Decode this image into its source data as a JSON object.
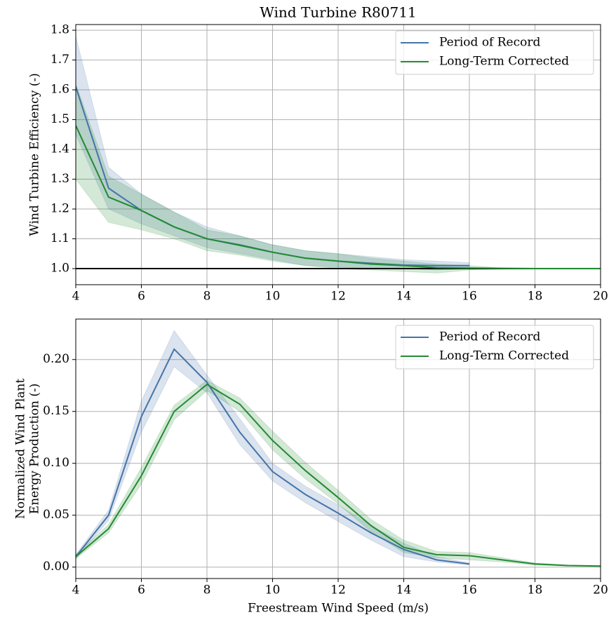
{
  "chart_data": [
    {
      "type": "line",
      "title": "Wind Turbine R80711",
      "ylabel": [
        "Wind Turbine Efficiency (-)"
      ],
      "xlim": [
        4,
        20
      ],
      "xticks": [
        4,
        6,
        8,
        10,
        12,
        14,
        16,
        18,
        20
      ],
      "ylim": [
        0.946,
        1.819
      ],
      "yticks": [
        {
          "value": 1.0,
          "label": "1.0"
        },
        {
          "value": 1.1,
          "label": "1.1"
        },
        {
          "value": 1.2,
          "label": "1.2"
        },
        {
          "value": 1.3,
          "label": "1.3"
        },
        {
          "value": 1.4,
          "label": "1.4"
        },
        {
          "value": 1.5,
          "label": "1.5"
        },
        {
          "value": 1.6,
          "label": "1.6"
        },
        {
          "value": 1.7,
          "label": "1.7"
        },
        {
          "value": 1.8,
          "label": "1.8"
        }
      ],
      "grid": true,
      "legend": "upper right",
      "hline": 1.0,
      "hline_color": "#000000",
      "series": [
        {
          "name": "Period of Record",
          "color": "#4474a8",
          "x": [
            4,
            5,
            6,
            7,
            8,
            9,
            10,
            11,
            12,
            13,
            14,
            15,
            16
          ],
          "values": [
            1.61,
            1.27,
            1.195,
            1.14,
            1.1,
            1.08,
            1.055,
            1.035,
            1.025,
            1.018,
            1.012,
            1.01,
            1.01
          ],
          "lower": [
            1.45,
            1.2,
            1.15,
            1.11,
            1.07,
            1.05,
            1.03,
            1.01,
            1.005,
            1.0,
            1.0,
            0.995,
            1.0
          ],
          "upper": [
            1.78,
            1.34,
            1.25,
            1.19,
            1.14,
            1.11,
            1.08,
            1.06,
            1.05,
            1.04,
            1.03,
            1.025,
            1.02
          ]
        },
        {
          "name": "Long-Term Corrected",
          "color": "#228b32",
          "x": [
            4,
            5,
            6,
            7,
            8,
            9,
            10,
            11,
            12,
            13,
            14,
            15,
            16,
            17,
            18,
            19,
            20
          ],
          "values": [
            1.48,
            1.24,
            1.195,
            1.14,
            1.1,
            1.078,
            1.055,
            1.035,
            1.025,
            1.015,
            1.01,
            1.003,
            1.002,
            1.001,
            1.0,
            1.0,
            1.0
          ],
          "lower": [
            1.3,
            1.155,
            1.13,
            1.1,
            1.06,
            1.045,
            1.025,
            1.01,
            1.0,
            0.995,
            0.99,
            0.985,
            0.995,
            0.998,
            0.998,
            0.998,
            0.998
          ],
          "upper": [
            1.62,
            1.31,
            1.25,
            1.19,
            1.13,
            1.11,
            1.08,
            1.06,
            1.05,
            1.035,
            1.025,
            1.015,
            1.01,
            1.002,
            1.002,
            1.002,
            1.002
          ]
        }
      ]
    },
    {
      "type": "line",
      "xlabel": "Freestream Wind Speed (m/s)",
      "ylabel": [
        "Normalized Wind Plant",
        "Energy Production (-)"
      ],
      "xlim": [
        4,
        20
      ],
      "xticks": [
        4,
        6,
        8,
        10,
        12,
        14,
        16,
        18,
        20
      ],
      "ylim": [
        -0.011,
        0.239
      ],
      "yticks": [
        {
          "value": 0,
          "label": "0.00"
        },
        {
          "value": 0.05,
          "label": "0.05"
        },
        {
          "value": 0.1,
          "label": "0.10"
        },
        {
          "value": 0.15,
          "label": "0.15"
        },
        {
          "value": 0.2,
          "label": "0.20"
        }
      ],
      "grid": true,
      "legend": "upper right",
      "series": [
        {
          "name": "Period of Record",
          "color": "#4474a8",
          "x": [
            4,
            5,
            6,
            7,
            8,
            9,
            10,
            11,
            12,
            13,
            14,
            15,
            16
          ],
          "values": [
            0.01,
            0.05,
            0.145,
            0.21,
            0.178,
            0.13,
            0.092,
            0.07,
            0.052,
            0.033,
            0.017,
            0.007,
            0.003
          ],
          "lower": [
            0.008,
            0.045,
            0.13,
            0.193,
            0.168,
            0.118,
            0.083,
            0.062,
            0.044,
            0.026,
            0.01,
            0.005,
            0.002
          ],
          "upper": [
            0.012,
            0.055,
            0.16,
            0.228,
            0.185,
            0.143,
            0.1,
            0.078,
            0.06,
            0.04,
            0.023,
            0.01,
            0.004
          ]
        },
        {
          "name": "Long-Term Corrected",
          "color": "#228b32",
          "x": [
            4,
            5,
            6,
            7,
            8,
            9,
            10,
            11,
            12,
            13,
            14,
            15,
            16,
            17,
            18,
            19,
            20
          ],
          "values": [
            0.01,
            0.037,
            0.088,
            0.15,
            0.176,
            0.157,
            0.122,
            0.093,
            0.067,
            0.04,
            0.019,
            0.012,
            0.011,
            0.007,
            0.003,
            0.0015,
            0.001
          ],
          "lower": [
            0.008,
            0.033,
            0.08,
            0.142,
            0.17,
            0.15,
            0.113,
            0.085,
            0.061,
            0.034,
            0.014,
            0.009,
            0.007,
            0.005,
            0.002,
            0.001,
            0.0005
          ],
          "upper": [
            0.012,
            0.041,
            0.096,
            0.156,
            0.18,
            0.163,
            0.131,
            0.101,
            0.074,
            0.046,
            0.026,
            0.015,
            0.014,
            0.009,
            0.004,
            0.002,
            0.0015
          ]
        }
      ]
    }
  ]
}
